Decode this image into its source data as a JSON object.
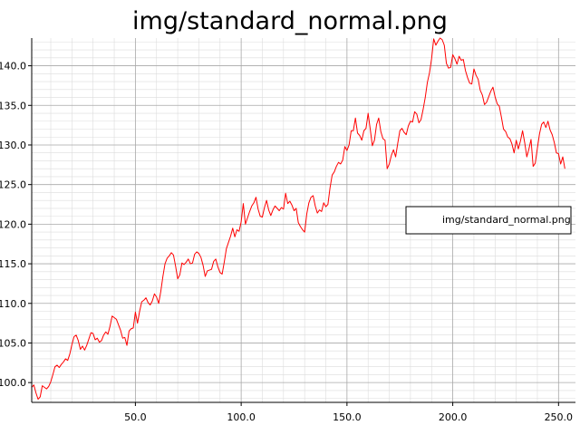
{
  "chart_data": {
    "type": "line",
    "title": "img/standard_normal.png",
    "xlabel": "",
    "ylabel": "",
    "xlim": [
      1,
      258
    ],
    "ylim": [
      97.5,
      143.5
    ],
    "x_ticks": [
      50,
      100,
      150,
      200,
      250
    ],
    "x_tick_labels": [
      "50.0",
      "100.0",
      "150.0",
      "200.0",
      "250.0"
    ],
    "y_ticks": [
      100,
      105,
      110,
      115,
      120,
      125,
      130,
      135,
      140
    ],
    "y_tick_labels": [
      "100.0",
      "105.0",
      "110.0",
      "115.0",
      "120.0",
      "125.0",
      "130.0",
      "135.0",
      "140.0"
    ],
    "grid": true,
    "minor_grid": true,
    "legend_position": "right",
    "series": [
      {
        "name": "img/standard_normal.png",
        "color": "#ff0000",
        "x_start": 1,
        "x_step": 1,
        "values": [
          99.4,
          99.7,
          98.7,
          97.9,
          98.2,
          99.6,
          99.4,
          99.2,
          99.5,
          100.1,
          101.0,
          102.0,
          102.2,
          101.9,
          102.3,
          102.6,
          103.0,
          102.8,
          103.6,
          104.8,
          105.8,
          106.0,
          105.3,
          104.2,
          104.6,
          104.1,
          104.7,
          105.5,
          106.3,
          106.2,
          105.4,
          105.6,
          105.1,
          105.3,
          106.0,
          106.4,
          106.1,
          107.1,
          108.4,
          108.2,
          108.0,
          107.3,
          106.6,
          105.6,
          105.7,
          104.7,
          106.5,
          106.8,
          106.9,
          108.9,
          107.5,
          109.0,
          110.2,
          110.4,
          110.7,
          110.1,
          109.8,
          110.3,
          111.2,
          110.8,
          110.0,
          111.5,
          113.4,
          115.0,
          115.7,
          116.0,
          116.4,
          116.1,
          114.7,
          113.1,
          113.6,
          115.1,
          114.9,
          115.2,
          115.6,
          115.0,
          115.1,
          116.2,
          116.5,
          116.3,
          115.8,
          114.8,
          113.4,
          114.1,
          114.2,
          114.3,
          115.3,
          115.6,
          114.6,
          113.9,
          113.7,
          115.2,
          116.9,
          117.7,
          118.5,
          119.5,
          118.4,
          119.3,
          119.1,
          120.3,
          122.6,
          120.0,
          120.8,
          121.6,
          122.3,
          122.7,
          123.4,
          121.9,
          121.0,
          120.9,
          122.1,
          123.0,
          121.8,
          121.1,
          121.8,
          122.3,
          122.0,
          121.7,
          122.1,
          121.9,
          123.9,
          122.6,
          122.9,
          122.4,
          121.7,
          122.0,
          120.2,
          119.7,
          119.3,
          119.0,
          121.3,
          122.7,
          123.4,
          123.6,
          122.3,
          121.4,
          121.8,
          121.6,
          122.7,
          122.2,
          122.5,
          124.6,
          126.2,
          126.6,
          127.3,
          127.8,
          127.6,
          128.1,
          129.8,
          129.3,
          130.0,
          131.8,
          131.8,
          133.4,
          131.5,
          131.2,
          130.6,
          131.8,
          132.1,
          134.0,
          132.0,
          129.9,
          130.6,
          132.6,
          133.4,
          131.7,
          130.8,
          130.6,
          127.0,
          127.6,
          128.7,
          129.4,
          128.5,
          130.2,
          131.8,
          132.1,
          131.6,
          131.3,
          132.4,
          133.0,
          132.9,
          134.2,
          133.9,
          132.8,
          133.2,
          134.5,
          136.0,
          137.9,
          139.1,
          140.9,
          143.4,
          142.6,
          143.1,
          143.5,
          143.3,
          142.6,
          140.3,
          139.7,
          139.8,
          141.4,
          140.9,
          140.2,
          141.2,
          140.7,
          140.8,
          139.4,
          138.5,
          137.8,
          137.7,
          139.6,
          138.8,
          138.3,
          136.9,
          136.3,
          135.1,
          135.4,
          136.1,
          136.8,
          137.3,
          136.1,
          135.2,
          134.9,
          133.5,
          132.0,
          131.7,
          131.0,
          130.8,
          130.1,
          129.0,
          130.6,
          129.5,
          130.5,
          131.8,
          130.3,
          128.5,
          129.5,
          130.7,
          127.3,
          127.7,
          129.6,
          131.4,
          132.6,
          132.9,
          132.2,
          133.0,
          131.9,
          131.3,
          130.3,
          129.0,
          128.9,
          127.6,
          128.5,
          127.0
        ]
      }
    ]
  }
}
